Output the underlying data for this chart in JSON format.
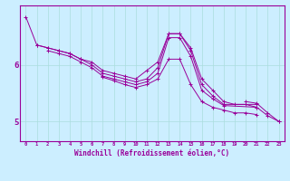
{
  "title": "",
  "xlabel": "Windchill (Refroidissement éolien,°C)",
  "ylabel": "",
  "bg_color": "#cceeff",
  "line_color": "#990099",
  "grid_color": "#aadddd",
  "yticks": [
    5,
    6
  ],
  "xlim": [
    -0.5,
    23.5
  ],
  "ylim": [
    4.65,
    7.05
  ],
  "series": [
    [
      6.85,
      6.35,
      6.3,
      6.25,
      6.2,
      6.1,
      6.05,
      5.9,
      5.85,
      5.8,
      5.75,
      5.9,
      6.05,
      6.55,
      6.55,
      6.3,
      5.75,
      5.55,
      5.35,
      5.3,
      5.3,
      5.25,
      5.1,
      5.0
    ],
    [
      null,
      6.35,
      6.3,
      6.25,
      6.2,
      6.1,
      6.0,
      5.85,
      5.8,
      5.75,
      5.7,
      5.75,
      5.95,
      6.55,
      6.55,
      6.25,
      5.65,
      5.45,
      5.3,
      null,
      null,
      5.3,
      null,
      null
    ],
    [
      null,
      null,
      6.25,
      6.2,
      6.15,
      6.05,
      5.95,
      5.8,
      5.75,
      5.7,
      5.65,
      5.7,
      5.85,
      6.48,
      6.48,
      6.15,
      5.55,
      5.4,
      5.28,
      null,
      null,
      5.25,
      null,
      null
    ],
    [
      null,
      null,
      null,
      null,
      null,
      null,
      null,
      5.78,
      5.72,
      5.65,
      5.6,
      5.65,
      5.75,
      6.1,
      6.1,
      5.65,
      5.35,
      5.25,
      5.2,
      5.15,
      5.15,
      5.12,
      null,
      null
    ],
    [
      null,
      null,
      null,
      null,
      null,
      null,
      null,
      null,
      null,
      null,
      null,
      null,
      null,
      null,
      null,
      null,
      null,
      null,
      null,
      null,
      5.35,
      5.32,
      5.15,
      5.0
    ]
  ]
}
